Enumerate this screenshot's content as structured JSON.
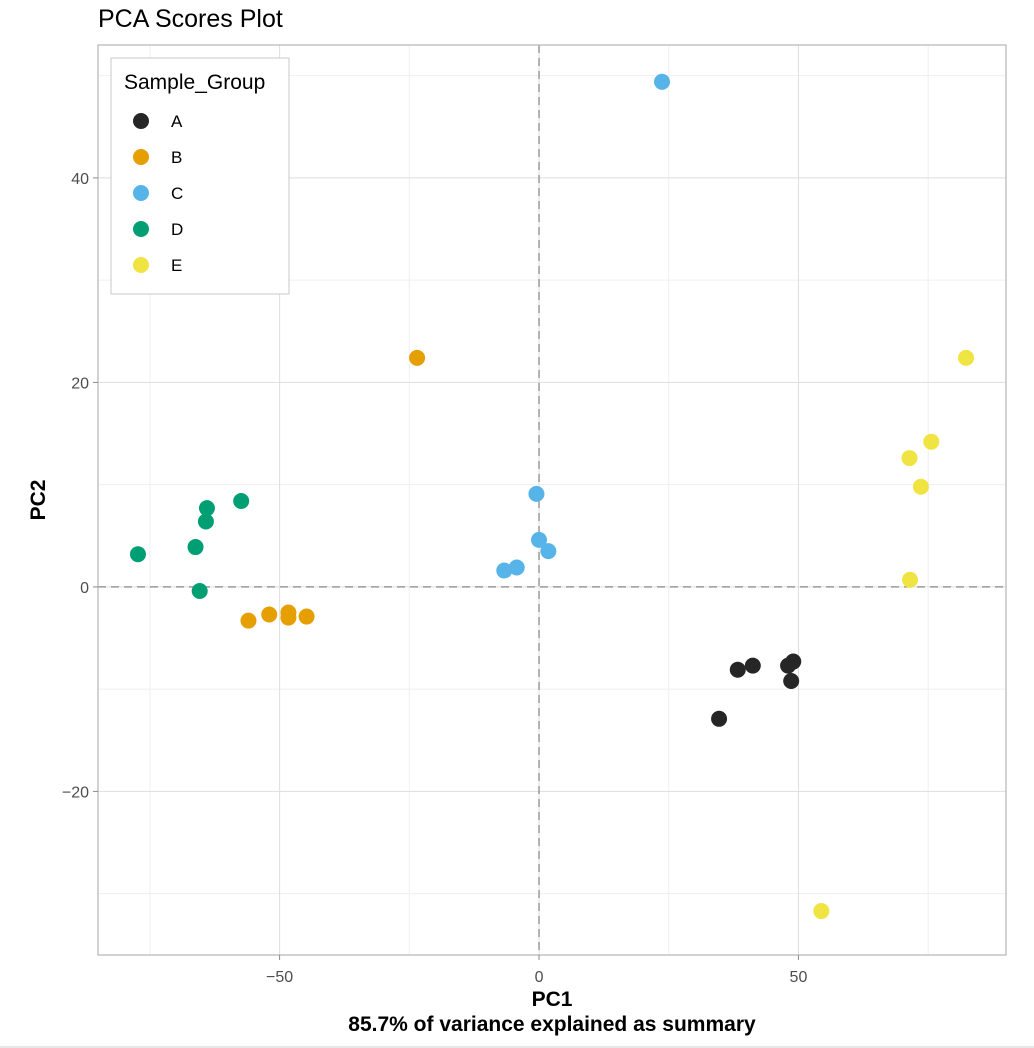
{
  "chart_data": {
    "type": "scatter",
    "title": "PCA Scores Plot",
    "xlabel": "PC1",
    "xlabel_sub": "85.7% of variance explained as summary",
    "ylabel": "PC2",
    "xlim": [
      -85,
      90
    ],
    "ylim": [
      -36,
      53
    ],
    "x_major_ticks": [
      -50,
      0,
      50
    ],
    "x_tick_labels": [
      "−50",
      "0",
      "50"
    ],
    "x_minor_ticks": [
      -75,
      -25,
      25,
      75
    ],
    "y_major_ticks": [
      -20,
      0,
      20,
      40
    ],
    "y_tick_labels": [
      "−20",
      "0",
      "20",
      "40"
    ],
    "y_minor_ticks": [
      -30,
      -10,
      10,
      30,
      50
    ],
    "reference_lines": {
      "x": 0,
      "y": 0,
      "style": "dashed"
    },
    "grid": true,
    "legend": {
      "title": "Sample_Group",
      "position": "top-left-inside"
    },
    "series": [
      {
        "name": "A",
        "color": "#262626",
        "points": [
          [
            34.7,
            -12.9
          ],
          [
            38.3,
            -8.1
          ],
          [
            41.2,
            -7.7
          ],
          [
            48.0,
            -7.7
          ],
          [
            49.0,
            -7.3
          ],
          [
            48.6,
            -9.2
          ]
        ]
      },
      {
        "name": "B",
        "color": "#E69F00",
        "points": [
          [
            -23.5,
            22.4
          ],
          [
            -56.0,
            -3.3
          ],
          [
            -52.0,
            -2.7
          ],
          [
            -48.3,
            -2.5
          ],
          [
            -48.3,
            -3.0
          ],
          [
            -44.8,
            -2.9
          ]
        ]
      },
      {
        "name": "C",
        "color": "#56B4E9",
        "points": [
          [
            23.7,
            49.4
          ],
          [
            -0.5,
            9.1
          ],
          [
            0.0,
            4.6
          ],
          [
            1.8,
            3.5
          ],
          [
            -4.3,
            1.9
          ],
          [
            -6.7,
            1.6
          ]
        ]
      },
      {
        "name": "D",
        "color": "#009E73",
        "points": [
          [
            -77.3,
            3.2
          ],
          [
            -57.4,
            8.4
          ],
          [
            -64.0,
            7.7
          ],
          [
            -64.2,
            6.4
          ],
          [
            -66.2,
            3.9
          ],
          [
            -65.4,
            -0.4
          ]
        ]
      },
      {
        "name": "E",
        "color": "#F0E442",
        "points": [
          [
            82.3,
            22.4
          ],
          [
            75.6,
            14.2
          ],
          [
            71.4,
            12.6
          ],
          [
            73.6,
            9.8
          ],
          [
            71.5,
            0.7
          ],
          [
            54.4,
            -31.7
          ]
        ]
      }
    ]
  }
}
